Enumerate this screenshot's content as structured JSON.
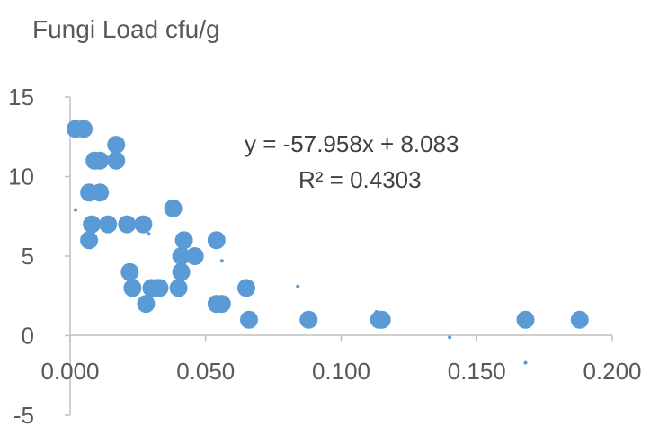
{
  "chart_data": {
    "type": "scatter",
    "title": "Fungi Load cfu/g",
    "xlabel": "",
    "ylabel": "",
    "xlim": [
      0,
      0.2
    ],
    "ylim": [
      -5,
      15
    ],
    "x_ticks": [
      0,
      0.05,
      0.1,
      0.15,
      0.2
    ],
    "x_tick_labels": [
      "0.000",
      "0.050",
      "0.100",
      "0.150",
      "0.200"
    ],
    "y_ticks": [
      -5,
      0,
      5,
      10,
      15
    ],
    "y_tick_labels": [
      "-5",
      "0",
      "5",
      "10",
      "15"
    ],
    "grid": false,
    "legend": "none",
    "marker_color": "#5b9bd5",
    "series": [
      {
        "points": [
          {
            "x": 0.002,
            "y": 13
          },
          {
            "x": 0.005,
            "y": 13
          },
          {
            "x": 0.007,
            "y": 9
          },
          {
            "x": 0.011,
            "y": 9
          },
          {
            "x": 0.008,
            "y": 7
          },
          {
            "x": 0.009,
            "y": 11
          },
          {
            "x": 0.011,
            "y": 11
          },
          {
            "x": 0.007,
            "y": 6
          },
          {
            "x": 0.014,
            "y": 7
          },
          {
            "x": 0.017,
            "y": 12
          },
          {
            "x": 0.017,
            "y": 11
          },
          {
            "x": 0.021,
            "y": 7
          },
          {
            "x": 0.027,
            "y": 7
          },
          {
            "x": 0.022,
            "y": 4
          },
          {
            "x": 0.023,
            "y": 3
          },
          {
            "x": 0.028,
            "y": 2
          },
          {
            "x": 0.03,
            "y": 3
          },
          {
            "x": 0.032,
            "y": 3
          },
          {
            "x": 0.033,
            "y": 3
          },
          {
            "x": 0.038,
            "y": 8
          },
          {
            "x": 0.04,
            "y": 3
          },
          {
            "x": 0.041,
            "y": 4
          },
          {
            "x": 0.041,
            "y": 5
          },
          {
            "x": 0.042,
            "y": 6
          },
          {
            "x": 0.046,
            "y": 5
          },
          {
            "x": 0.054,
            "y": 6
          },
          {
            "x": 0.054,
            "y": 2
          },
          {
            "x": 0.056,
            "y": 2
          },
          {
            "x": 0.065,
            "y": 3
          },
          {
            "x": 0.066,
            "y": 1
          },
          {
            "x": 0.088,
            "y": 1
          },
          {
            "x": 0.114,
            "y": 1
          },
          {
            "x": 0.115,
            "y": 1
          },
          {
            "x": 0.168,
            "y": 1
          },
          {
            "x": 0.188,
            "y": 1
          }
        ]
      }
    ],
    "residual_marks": [
      {
        "x": 0.002,
        "y": 7.9
      },
      {
        "x": 0.029,
        "y": 6.4
      },
      {
        "x": 0.056,
        "y": 4.7
      },
      {
        "x": 0.084,
        "y": 3.1
      },
      {
        "x": 0.113,
        "y": 1.5
      },
      {
        "x": 0.14,
        "y": -0.1
      },
      {
        "x": 0.168,
        "y": -1.7
      }
    ],
    "annotations": {
      "equation": "y = -57.958x + 8.083",
      "r_squared": "R² = 0.4303"
    }
  }
}
